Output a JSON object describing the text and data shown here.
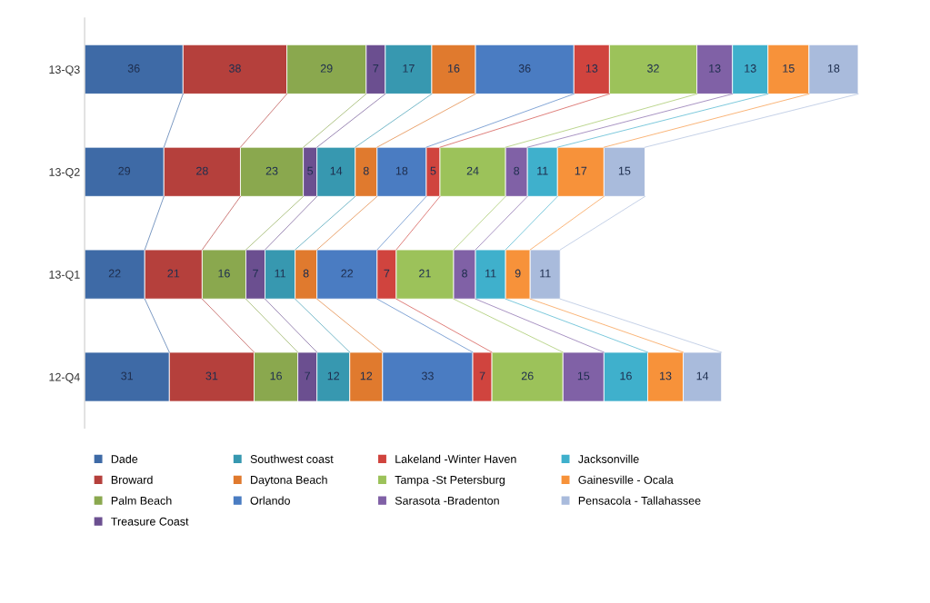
{
  "chart_data": {
    "type": "bar",
    "orientation": "horizontal",
    "stacked": true,
    "data_labels": true,
    "legend": "bottom",
    "grid": false,
    "categories": [
      "13-Q3",
      "13-Q2",
      "13-Q1",
      "12-Q4"
    ],
    "series": [
      {
        "name": "Dade",
        "color": "#3e6aa6",
        "values": [
          36,
          29,
          22,
          31
        ]
      },
      {
        "name": "Broward",
        "color": "#b5403c",
        "values": [
          38,
          28,
          21,
          31
        ]
      },
      {
        "name": "Palm Beach",
        "color": "#8aa84e",
        "values": [
          29,
          23,
          16,
          16
        ]
      },
      {
        "name": "Treasure Coast",
        "color": "#6b4f90",
        "values": [
          7,
          5,
          7,
          7
        ]
      },
      {
        "name": "Southwest coast",
        "color": "#3798b0",
        "values": [
          17,
          14,
          11,
          12
        ]
      },
      {
        "name": "Daytona Beach",
        "color": "#e07a2e",
        "values": [
          16,
          8,
          8,
          12
        ]
      },
      {
        "name": "Orlando",
        "color": "#4a7cc2",
        "values": [
          36,
          18,
          22,
          33
        ]
      },
      {
        "name": "Lakeland -Winter Haven",
        "color": "#d0443e",
        "values": [
          13,
          5,
          7,
          7
        ]
      },
      {
        "name": "Tampa -St Petersburg",
        "color": "#9cc25a",
        "values": [
          32,
          24,
          21,
          26
        ]
      },
      {
        "name": "Sarasota -Bradenton",
        "color": "#8061a6",
        "values": [
          13,
          8,
          8,
          15
        ]
      },
      {
        "name": "Jacksonville",
        "color": "#3fb0cc",
        "values": [
          13,
          11,
          11,
          16
        ]
      },
      {
        "name": "Gainesville - Ocala",
        "color": "#f7923a",
        "values": [
          15,
          17,
          9,
          13
        ]
      },
      {
        "name": "Pensacola - Tallahassee",
        "color": "#a9bbdc",
        "values": [
          18,
          15,
          11,
          14
        ]
      }
    ]
  }
}
